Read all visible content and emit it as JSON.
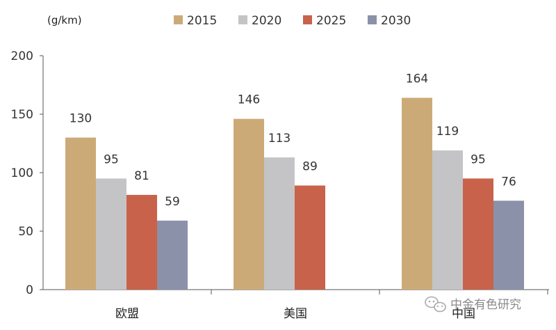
{
  "chart_data": {
    "type": "bar",
    "title": "",
    "xlabel": "",
    "ylabel": "(g/km)",
    "ylim": [
      0,
      200
    ],
    "yticks": [
      0,
      50,
      100,
      150,
      200
    ],
    "grid": false,
    "legend_position": "top-center",
    "categories": [
      "欧盟",
      "美国",
      "中国"
    ],
    "series": [
      {
        "name": "2015",
        "color": "#ccaa78",
        "values": [
          130,
          146,
          164
        ]
      },
      {
        "name": "2020",
        "color": "#c4c4c6",
        "values": [
          95,
          113,
          119
        ]
      },
      {
        "name": "2025",
        "color": "#c9624a",
        "values": [
          81,
          89,
          95
        ]
      },
      {
        "name": "2030",
        "color": "#8b91a8",
        "values": [
          59,
          null,
          76
        ]
      }
    ]
  },
  "watermark": {
    "text": "中金有色研究",
    "icon": "wechat-icon"
  }
}
